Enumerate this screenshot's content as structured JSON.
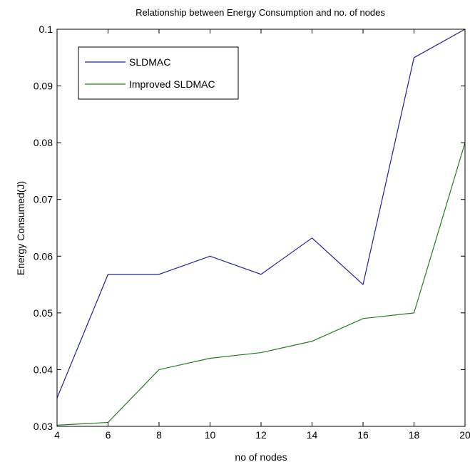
{
  "chart_data": {
    "type": "line",
    "title": "Relationship between Energy Consumption and no. of nodes",
    "xlabel": "no of nodes",
    "ylabel": "Energy Consumed(J)",
    "xlim": [
      4,
      20
    ],
    "ylim": [
      0.03,
      0.1
    ],
    "xticks": [
      "4",
      "6",
      "8",
      "10",
      "12",
      "14",
      "16",
      "18",
      "20"
    ],
    "yticks": [
      "0.03",
      "0.04",
      "0.05",
      "0.06",
      "0.07",
      "0.08",
      "0.09",
      "0.1"
    ],
    "grid": false,
    "legend_position": "top-left",
    "x": [
      4,
      6,
      8,
      10,
      12,
      14,
      16,
      18,
      20
    ],
    "series": [
      {
        "name": "SLDMAC",
        "color": "#2020a0",
        "values": [
          0.035,
          0.0568,
          0.0568,
          0.06,
          0.0568,
          0.0632,
          0.055,
          0.095,
          0.1
        ]
      },
      {
        "name": "Improved SLDMAC",
        "color": "#208020",
        "values": [
          0.0302,
          0.0307,
          0.04,
          0.042,
          0.043,
          0.045,
          0.049,
          0.05,
          0.08
        ]
      }
    ]
  }
}
